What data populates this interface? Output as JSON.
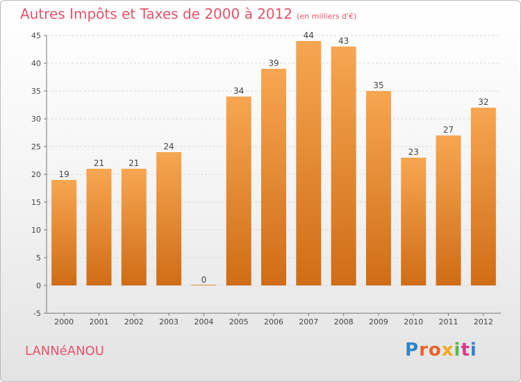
{
  "header": {
    "title": "Autres Impôts et Taxes de 2000 à 2012",
    "unit": "(en milliers d'€)"
  },
  "footer": {
    "town": "LANNéANOU",
    "brand": "Proxiti"
  },
  "colors": {
    "title": "#e0556b",
    "bar_top": "#f7a651",
    "bar_bottom": "#cf6d16",
    "grid": "#d8d8d8"
  },
  "chart_data": {
    "type": "bar",
    "categories": [
      "2000",
      "2001",
      "2002",
      "2003",
      "2004",
      "2005",
      "2006",
      "2007",
      "2008",
      "2009",
      "2010",
      "2011",
      "2012"
    ],
    "values": [
      19,
      21,
      21,
      24,
      0,
      34,
      39,
      44,
      43,
      35,
      23,
      27,
      32
    ],
    "ylim": [
      -5,
      45
    ],
    "yticks": [
      -5,
      0,
      5,
      10,
      15,
      20,
      25,
      30,
      35,
      40,
      45
    ],
    "grid": "horizontal dashed",
    "legend": "none"
  }
}
